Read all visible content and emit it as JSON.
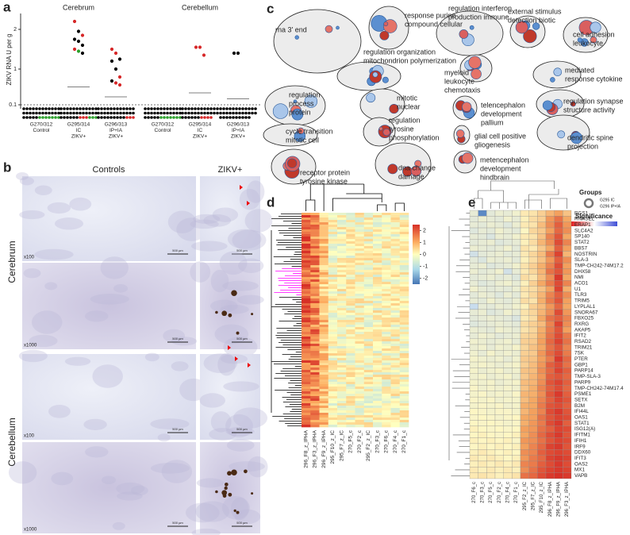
{
  "panel_a": {
    "label": "a",
    "y_axis_label": "ZIKV RNA U per g",
    "ylim": [
      0,
      2.4
    ],
    "yticks": [
      0.1,
      1,
      2
    ],
    "lod": 0.1,
    "regions": [
      {
        "title": "Cerebrum",
        "groups": [
          {
            "label_lines": [
              "G270/312",
              "Control"
            ],
            "values": [],
            "colors": [],
            "lod_dots": [
              {
                "color": "#000000",
                "count": 29
              },
              {
                "color": "#2ca02c",
                "count": 7
              }
            ]
          },
          {
            "label_lines": [
              "G295/314",
              "IC",
              "ZIKV+"
            ],
            "values": [
              2.2,
              1.95,
              1.85,
              1.75,
              1.7,
              1.6,
              1.5,
              1.45,
              1.4
            ],
            "colors": [
              "#d62728",
              "#000000",
              "#d62728",
              "#000000",
              "#000000",
              "#000000",
              "#d62728",
              "#2ca02c",
              "#000000"
            ],
            "median": 0.55,
            "lod_dots": [
              {
                "color": "#000000",
                "count": 30
              },
              {
                "color": "#d62728",
                "count": 3
              },
              {
                "color": "#2ca02c",
                "count": 3
              }
            ]
          },
          {
            "label_lines": [
              "G296/313",
              "IP+IA",
              "ZIKV+"
            ],
            "values": [
              1.5,
              1.4,
              1.25,
              1.2,
              1.0,
              0.8,
              0.7,
              0.65,
              0.6
            ],
            "colors": [
              "#d62728",
              "#d62728",
              "#000000",
              "#000000",
              "#000000",
              "#d62728",
              "#000000",
              "#d62728",
              "#d62728"
            ],
            "median": 0.3,
            "lod_dots": [
              {
                "color": "#000000",
                "count": 33
              },
              {
                "color": "#d62728",
                "count": 3
              }
            ]
          }
        ]
      },
      {
        "title": "Cerebellum",
        "groups": [
          {
            "label_lines": [
              "G270/312",
              "Control"
            ],
            "values": [],
            "colors": [],
            "lod_dots": [
              {
                "color": "#000000",
                "count": 29
              },
              {
                "color": "#2ca02c",
                "count": 7
              }
            ]
          },
          {
            "label_lines": [
              "G295/314",
              "IC",
              "ZIKV+"
            ],
            "values": [
              1.55,
              1.55,
              1.35
            ],
            "colors": [
              "#d62728",
              "#d62728",
              "#d62728"
            ],
            "median": 0.4,
            "lod_dots": [
              {
                "color": "#000000",
                "count": 30
              },
              {
                "color": "#d62728",
                "count": 4
              }
            ]
          },
          {
            "label_lines": [
              "G296/313",
              "IP+IA",
              "ZIKV+"
            ],
            "values": [
              1.4,
              1.4
            ],
            "colors": [
              "#000000",
              "#000000"
            ],
            "median": 0.25,
            "lod_dots": [
              {
                "color": "#000000",
                "count": 34
              }
            ]
          }
        ]
      }
    ]
  },
  "panel_b": {
    "label": "b",
    "column_titles": [
      "Controls",
      "ZIKV+"
    ],
    "row_titles": [
      "Cerebrum",
      "Cerebellum"
    ],
    "magnifications": [
      "x100",
      "x1000",
      "x100",
      "x1000"
    ],
    "scale_bar": "500 µm"
  },
  "panel_c": {
    "label": "c",
    "terms": [
      [
        "rna 3' end"
      ],
      [
        "response purine",
        "compound cellular"
      ],
      [
        "regulation interferon",
        "production immune"
      ],
      [
        "external stimulus",
        "detection biotic"
      ],
      [
        "cell adhesion",
        "leukocyte"
      ],
      [
        "regulation organization",
        "mitochondrion polymerization"
      ],
      [
        "myeloid",
        "leukocyte",
        "chemotaxis"
      ],
      [
        "mediated",
        "response cytokine"
      ],
      [
        "regulation",
        "process",
        "protein"
      ],
      [
        "mitotic",
        "nuclear"
      ],
      [
        "regulation",
        "tyrosine",
        "phosphorylation"
      ],
      [
        "telencephalon",
        "development",
        "pallium"
      ],
      [
        "regulation synapse",
        "structure activity"
      ],
      [
        "cycle transition",
        "mitotic cell"
      ],
      [
        "glial cell positive",
        "gliogenesis"
      ],
      [
        "dendritic spine",
        "projection"
      ],
      [
        "receptor protein",
        "tyrosine kinase"
      ],
      [
        "dna change",
        "damage"
      ],
      [
        "metencephalon",
        "development",
        "hindbrain"
      ]
    ],
    "groups_title": "Groups",
    "group_names": [
      "G295 IC",
      "G296 IP+IA"
    ],
    "significance_title": "Significance"
  },
  "panel_d": {
    "label": "d",
    "colorbar_ticks": [
      2,
      1,
      0,
      -1,
      -2
    ],
    "columns": [
      "296_F8_z_IPHA",
      "296_F3_z_IPHA",
      "296_F9_z_IPHA",
      "295_F10_z_IC",
      "295_F7_z_IC",
      "270_F5_c",
      "270_F2_c",
      "295_F2_z_IC",
      "270_F3_c",
      "270_F6_c",
      "270_F4_c",
      "270_F1_c"
    ],
    "column_label_colors": [
      "#c00000",
      "#c00000",
      "#c00000",
      "#c00000",
      "#c00000",
      "#000000",
      "#000000",
      "#c00000",
      "#000000",
      "#000000",
      "#000000",
      "#000000"
    ]
  },
  "panel_e": {
    "label": "e",
    "columns": [
      "270_F6_c",
      "270_F3_c",
      "270_F5_c",
      "270_F2_c",
      "270_F4_c",
      "270_F1_c",
      "295_F2_z_IC",
      "295_F7_z_IC",
      "295_F10_z_IC",
      "296_F8_z_IPHA",
      "296_F9_z_IPHA",
      "296_F3_z_IPHA"
    ],
    "column_label_colors": [
      "#000000",
      "#000000",
      "#000000",
      "#000000",
      "#000000",
      "#000000",
      "#c00000",
      "#c00000",
      "#c00000",
      "#c00000",
      "#c00000",
      "#c00000"
    ],
    "genes": [
      "RGS1",
      "RNASEL",
      "ERAP1",
      "SLC4A2",
      "SP140",
      "STAT2",
      "BBS7",
      "NOSTRIN",
      "SLA-3",
      "TMP-CH242-74M17.2",
      "DHX58",
      "NMI",
      "ACO1",
      "U1",
      "TLR3",
      "TRIM5",
      "LYPLAL1",
      "SNORA67",
      "FBXO25",
      "RXRG",
      "AKAP5",
      "IFIT2",
      "RSAD2",
      "TRIM21",
      "7SK",
      "PTER",
      "GBP1",
      "PARP14",
      "TMP-SLA-3",
      "PARP9",
      "TMP-CH242-74M17.4",
      "PSME1",
      "SETX",
      "B2M",
      "IFI44L",
      "OAS1",
      "STAT1",
      "ISG12(A)",
      "IFITM1",
      "IFIH1",
      "IRF9",
      "DDX60",
      "IFIT3",
      "OAS2",
      "MX1",
      "VAPB"
    ],
    "matrix": [
      [
        -0.5,
        -2.2,
        -0.6,
        -0.4,
        -0.5,
        -0.3,
        0.2,
        0.3,
        0.6,
        1.0,
        1.3,
        0.8
      ],
      [
        -0.6,
        -0.4,
        -0.5,
        -0.6,
        -0.3,
        -0.5,
        0.1,
        0.4,
        0.6,
        1.4,
        1.8,
        1.2
      ],
      [
        -0.5,
        -0.6,
        -0.4,
        -0.5,
        -0.7,
        -0.4,
        0.2,
        0.3,
        0.9,
        1.5,
        2.0,
        1.4
      ],
      [
        -0.7,
        -0.5,
        -0.6,
        -0.3,
        -0.5,
        -0.6,
        0.0,
        0.5,
        0.7,
        1.3,
        1.9,
        1.5
      ],
      [
        -0.5,
        -0.6,
        -0.8,
        -0.4,
        -0.5,
        -0.3,
        0.2,
        0.3,
        0.8,
        1.6,
        2.1,
        1.2
      ],
      [
        -0.6,
        -0.5,
        -0.4,
        -0.7,
        -0.6,
        -0.5,
        0.1,
        0.4,
        1.0,
        1.5,
        2.2,
        1.6
      ],
      [
        -0.4,
        -0.5,
        -0.6,
        -0.5,
        -0.3,
        -0.6,
        0.3,
        0.2,
        0.7,
        1.2,
        2.0,
        1.3
      ],
      [
        -1.0,
        -0.6,
        -0.5,
        -0.4,
        -0.6,
        -0.5,
        0.2,
        0.5,
        0.9,
        1.7,
        2.3,
        1.0
      ],
      [
        -0.6,
        -0.8,
        -0.4,
        -0.5,
        -0.4,
        -0.6,
        0.1,
        0.4,
        0.8,
        1.4,
        2.0,
        1.5
      ],
      [
        -0.5,
        -0.4,
        -0.7,
        -0.6,
        -0.5,
        -0.3,
        0.3,
        0.6,
        1.1,
        1.6,
        2.2,
        1.3
      ],
      [
        -0.4,
        -0.6,
        -0.5,
        -0.3,
        -1.0,
        -0.5,
        0.2,
        0.5,
        1.0,
        1.8,
        2.1,
        1.4
      ],
      [
        -0.6,
        -0.5,
        -0.4,
        -0.6,
        -0.5,
        -0.7,
        0.4,
        0.3,
        0.9,
        1.5,
        2.4,
        1.2
      ],
      [
        -0.5,
        -0.7,
        -0.6,
        -0.4,
        -0.3,
        -0.5,
        0.1,
        0.6,
        1.2,
        1.7,
        2.2,
        1.6
      ],
      [
        -0.3,
        -0.5,
        -0.6,
        -0.5,
        -0.6,
        -0.4,
        0.3,
        0.4,
        0.8,
        1.3,
        2.3,
        1.1
      ],
      [
        -0.6,
        -0.4,
        -0.5,
        -0.7,
        -0.4,
        -0.6,
        0.2,
        0.5,
        1.0,
        1.6,
        2.0,
        1.5
      ],
      [
        -0.5,
        -0.6,
        -0.3,
        -0.5,
        -0.6,
        -0.4,
        0.4,
        0.3,
        1.1,
        1.7,
        2.1,
        1.3
      ],
      [
        -1.2,
        -0.5,
        -0.6,
        -0.4,
        -0.5,
        -0.3,
        0.1,
        0.6,
        0.9,
        1.4,
        1.9,
        1.2
      ],
      [
        -0.5,
        -0.4,
        -0.7,
        -0.6,
        -0.3,
        -0.5,
        0.3,
        0.5,
        1.0,
        1.5,
        2.2,
        1.4
      ],
      [
        -0.6,
        -0.5,
        -0.4,
        -0.5,
        -0.6,
        -0.8,
        0.2,
        0.4,
        1.2,
        1.8,
        2.0,
        1.6
      ],
      [
        -0.7,
        -0.6,
        -0.5,
        -0.4,
        -0.5,
        -0.6,
        0.4,
        0.6,
        0.9,
        1.6,
        2.3,
        1.5
      ],
      [
        -0.4,
        -0.5,
        -0.6,
        -0.3,
        -0.4,
        -0.5,
        0.3,
        0.5,
        1.1,
        1.7,
        2.1,
        1.3
      ],
      [
        -0.5,
        -0.3,
        -0.4,
        -0.6,
        -0.5,
        -0.4,
        0.5,
        0.6,
        1.2,
        1.8,
        2.2,
        1.7
      ],
      [
        -0.3,
        -0.4,
        -0.5,
        -0.4,
        -0.3,
        -0.5,
        0.6,
        0.7,
        1.3,
        1.9,
        2.3,
        1.8
      ],
      [
        -0.4,
        -0.3,
        -0.5,
        -0.3,
        -0.4,
        -0.2,
        0.5,
        0.8,
        1.2,
        1.8,
        2.1,
        1.6
      ],
      [
        -0.3,
        -0.5,
        -0.2,
        -0.4,
        -0.3,
        -0.4,
        0.6,
        0.7,
        1.4,
        1.9,
        2.2,
        1.7
      ],
      [
        -0.2,
        -0.3,
        -0.4,
        -0.3,
        -0.5,
        -0.3,
        0.7,
        0.8,
        1.3,
        1.7,
        2.4,
        1.9
      ],
      [
        -0.3,
        -0.2,
        -0.3,
        -0.4,
        -0.3,
        -0.2,
        0.6,
        0.9,
        1.4,
        2.0,
        2.2,
        1.8
      ],
      [
        -0.2,
        -0.4,
        -0.3,
        -0.2,
        -0.4,
        -0.3,
        0.8,
        0.9,
        1.5,
        1.9,
        2.3,
        2.0
      ],
      [
        -0.3,
        -0.2,
        -0.4,
        -0.3,
        -0.2,
        -0.4,
        0.7,
        1.0,
        1.4,
        2.0,
        2.1,
        1.9
      ],
      [
        -0.2,
        -0.3,
        -0.2,
        -0.4,
        -0.3,
        -0.2,
        0.9,
        1.0,
        1.5,
        2.1,
        2.3,
        2.0
      ],
      [
        -0.1,
        -0.3,
        -0.2,
        -0.3,
        -0.2,
        -0.3,
        0.8,
        1.1,
        1.6,
        2.0,
        2.2,
        1.9
      ],
      [
        -0.2,
        -0.1,
        -0.3,
        -0.2,
        -0.3,
        -0.1,
        1.0,
        1.1,
        1.5,
        2.1,
        2.4,
        2.0
      ],
      [
        -0.1,
        -0.2,
        -0.1,
        -0.3,
        -0.2,
        -0.2,
        0.9,
        1.2,
        1.6,
        2.0,
        2.3,
        2.1
      ],
      [
        -0.2,
        -0.1,
        -0.2,
        -0.1,
        -0.3,
        -0.2,
        1.1,
        1.2,
        1.7,
        2.1,
        2.2,
        2.0
      ],
      [
        0.0,
        -0.1,
        -0.2,
        -0.1,
        -0.1,
        -0.2,
        1.0,
        1.3,
        1.6,
        2.2,
        2.4,
        2.1
      ],
      [
        -0.1,
        0.0,
        -0.1,
        -0.2,
        -0.1,
        0.0,
        1.2,
        1.3,
        1.8,
        2.1,
        2.3,
        2.2
      ],
      [
        0.0,
        -0.1,
        0.0,
        -0.1,
        -0.2,
        -0.1,
        1.1,
        1.4,
        1.7,
        2.2,
        2.4,
        2.0
      ],
      [
        0.1,
        0.0,
        -0.1,
        0.0,
        -0.1,
        0.0,
        1.3,
        1.4,
        1.8,
        2.0,
        2.3,
        2.2
      ],
      [
        0.0,
        0.1,
        0.0,
        -0.1,
        0.0,
        0.1,
        1.2,
        1.5,
        1.9,
        2.2,
        2.4,
        2.1
      ],
      [
        0.1,
        0.0,
        0.1,
        0.0,
        0.1,
        -0.1,
        1.4,
        1.5,
        1.8,
        2.1,
        2.3,
        2.2
      ],
      [
        0.0,
        0.1,
        0.0,
        0.1,
        0.0,
        0.1,
        1.3,
        1.6,
        1.9,
        2.3,
        2.4,
        2.1
      ],
      [
        0.1,
        0.2,
        0.1,
        0.0,
        0.1,
        0.0,
        1.5,
        1.6,
        2.0,
        2.2,
        2.3,
        2.2
      ],
      [
        0.2,
        0.1,
        0.2,
        0.1,
        0.0,
        0.1,
        1.4,
        1.7,
        1.9,
        2.3,
        2.4,
        2.3
      ],
      [
        0.1,
        0.2,
        0.1,
        0.2,
        0.1,
        0.2,
        1.6,
        1.7,
        2.0,
        2.2,
        2.4,
        2.2
      ],
      [
        0.2,
        0.1,
        0.2,
        0.1,
        0.2,
        0.1,
        1.5,
        1.8,
        2.1,
        2.3,
        2.4,
        2.3
      ],
      [
        0.2,
        0.3,
        0.2,
        0.1,
        0.2,
        0.3,
        1.8,
        1.9,
        2.2,
        2.4,
        2.5,
        2.4
      ]
    ]
  }
}
